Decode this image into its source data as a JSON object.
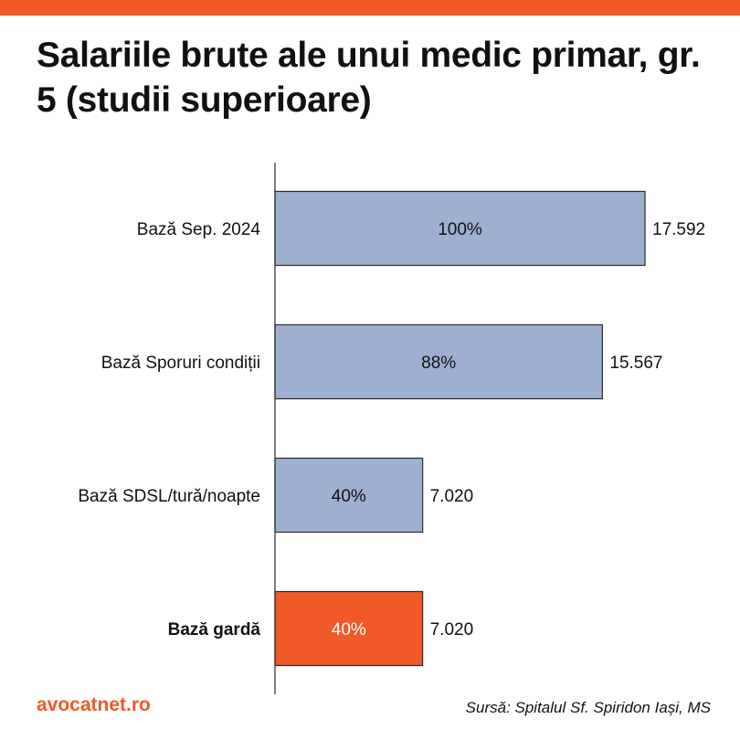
{
  "header": {
    "title": "Salariile brute ale unui medic primar, gr. 5 (studii superioare)"
  },
  "footer": {
    "brand": "avocatnet.ro",
    "source": "Sursă: Spitalul Sf. Spiridon Iași, MS"
  },
  "colors": {
    "accent": "#F05A28",
    "bar_default": "#9DB0D0",
    "bar_border": "#2B2B2B"
  },
  "chart_data": {
    "type": "bar",
    "orientation": "horizontal",
    "title": "Salariile brute ale unui medic primar, gr. 5 (studii superioare)",
    "categories": [
      "Bază Sep. 2024",
      "Bază Sporuri condiții",
      "Bază SDSL/tură/noapte",
      "Bază gardă"
    ],
    "values": [
      17592,
      15567,
      7020,
      7020
    ],
    "value_labels": [
      "17.592",
      "15.567",
      "7.020",
      "7.020"
    ],
    "percent_labels": [
      "100%",
      "88%",
      "40%",
      "40%"
    ],
    "highlight_index": 3,
    "xlim": [
      0,
      17592
    ],
    "grid": false,
    "legend": "none"
  }
}
